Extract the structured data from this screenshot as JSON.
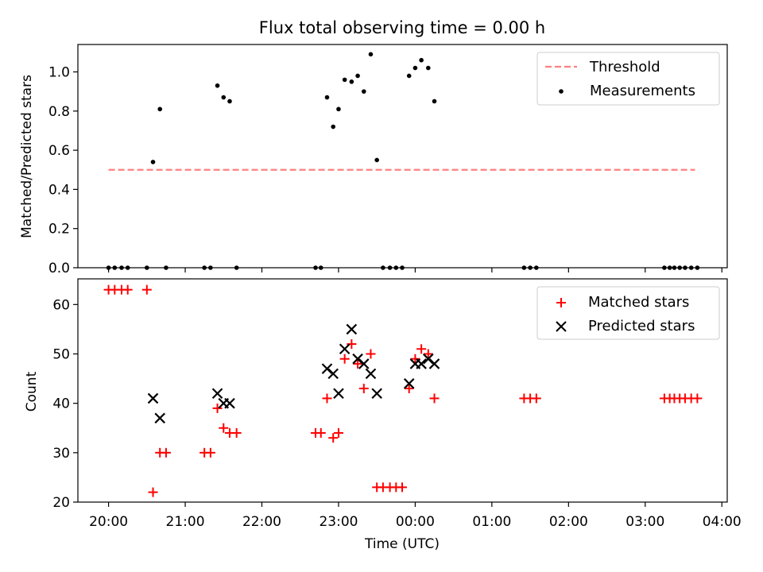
{
  "chart_data": [
    {
      "type": "scatter",
      "title": "Flux total observing time = 0.00 h",
      "xlabel": "",
      "ylabel": "Matched/Predicted stars",
      "xlim": [
        -0.4,
        8.07
      ],
      "ylim": [
        0,
        1.14
      ],
      "yticks": [
        0.0,
        0.2,
        0.4,
        0.6,
        0.8,
        1.0
      ],
      "ytick_labels": [
        "0.0",
        "0.2",
        "0.4",
        "0.6",
        "0.8",
        "1.0"
      ],
      "legend": {
        "placement": "top-right",
        "entries": [
          "Threshold",
          "Measurements"
        ]
      },
      "threshold": {
        "name": "Threshold",
        "value": 0.5,
        "x": [
          0.0,
          7.65
        ],
        "color": "#ff8080",
        "style": "dashed"
      },
      "series": [
        {
          "name": "Measurements",
          "marker": "dot",
          "color": "#000000",
          "x": [
            0.0,
            0.08,
            0.17,
            0.25,
            0.5,
            0.58,
            0.67,
            0.75,
            1.25,
            1.33,
            1.42,
            1.5,
            1.58,
            1.67,
            2.7,
            2.77,
            2.85,
            2.93,
            3.0,
            3.08,
            3.17,
            3.25,
            3.33,
            3.42,
            3.5,
            3.58,
            3.67,
            3.75,
            3.83,
            3.92,
            4.0,
            4.08,
            4.17,
            4.25,
            5.42,
            5.5,
            5.58,
            7.25,
            7.32,
            7.38,
            7.45,
            7.52,
            7.6,
            7.68
          ],
          "y": [
            0.0,
            0.0,
            0.0,
            0.0,
            0.0,
            0.54,
            0.81,
            0.0,
            0.0,
            0.0,
            0.93,
            0.87,
            0.85,
            0.0,
            0.0,
            0.0,
            0.87,
            0.72,
            0.81,
            0.96,
            0.95,
            0.98,
            0.9,
            1.09,
            0.55,
            0.0,
            0.0,
            0.0,
            0.0,
            0.98,
            1.02,
            1.06,
            1.02,
            0.85,
            0.0,
            0.0,
            0.0,
            0.0,
            0.0,
            0.0,
            0.0,
            0.0,
            0.0,
            0.0
          ]
        }
      ]
    },
    {
      "type": "scatter",
      "title": "",
      "xlabel": "Time (UTC)",
      "ylabel": "Count",
      "xlim": [
        -0.4,
        8.07
      ],
      "ylim": [
        20,
        65.2
      ],
      "yticks": [
        20,
        30,
        40,
        50,
        60
      ],
      "ytick_labels": [
        "20",
        "30",
        "40",
        "50",
        "60"
      ],
      "xticks": [
        0,
        1,
        2,
        3,
        4,
        5,
        6,
        7,
        8
      ],
      "xtick_labels": [
        "20:00",
        "21:00",
        "22:00",
        "23:00",
        "00:00",
        "01:00",
        "02:00",
        "03:00",
        "04:00"
      ],
      "legend": {
        "placement": "top-right",
        "entries": [
          "Matched stars",
          "Predicted stars"
        ]
      },
      "series": [
        {
          "name": "Matched stars",
          "marker": "plus",
          "color": "#ff0000",
          "x": [
            0.0,
            0.08,
            0.17,
            0.25,
            0.5,
            0.58,
            0.67,
            0.75,
            1.25,
            1.33,
            1.42,
            1.5,
            1.58,
            1.67,
            2.7,
            2.77,
            2.85,
            2.93,
            3.0,
            3.08,
            3.17,
            3.25,
            3.33,
            3.42,
            3.5,
            3.58,
            3.67,
            3.75,
            3.83,
            3.92,
            4.0,
            4.08,
            4.17,
            4.25,
            5.42,
            5.5,
            5.58,
            7.25,
            7.32,
            7.38,
            7.45,
            7.52,
            7.6,
            7.68
          ],
          "y": [
            63,
            63,
            63,
            63,
            63,
            22,
            30,
            30,
            30,
            30,
            39,
            35,
            34,
            34,
            34,
            34,
            41,
            33,
            34,
            49,
            52,
            48,
            43,
            50,
            23,
            23,
            23,
            23,
            23,
            43,
            49,
            51,
            50,
            41,
            41,
            41,
            41,
            41,
            41,
            41,
            41,
            41,
            41,
            41
          ]
        },
        {
          "name": "Predicted stars",
          "marker": "x",
          "color": "#000000",
          "x": [
            0.58,
            0.67,
            1.42,
            1.5,
            1.58,
            2.85,
            2.93,
            3.0,
            3.08,
            3.17,
            3.25,
            3.33,
            3.42,
            3.5,
            3.92,
            4.0,
            4.08,
            4.17,
            4.25
          ],
          "y": [
            41,
            37,
            42,
            40,
            40,
            47,
            46,
            42,
            51,
            55,
            49,
            48,
            46,
            42,
            44,
            48,
            48,
            49,
            48
          ]
        }
      ]
    }
  ]
}
